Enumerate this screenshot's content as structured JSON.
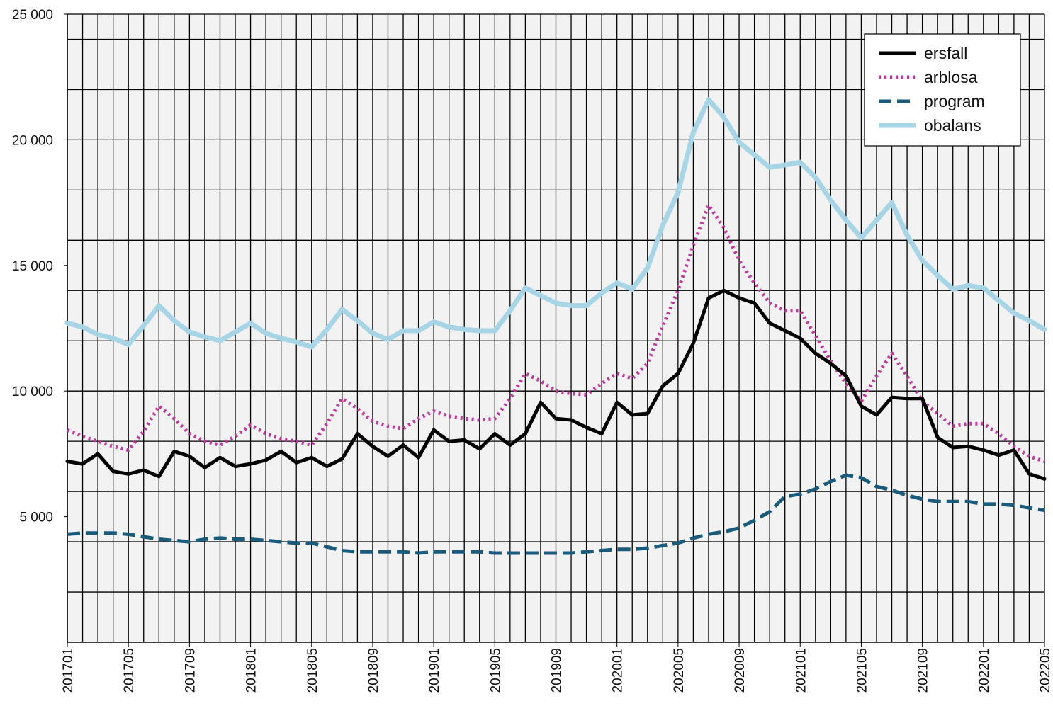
{
  "chart_data": {
    "type": "line",
    "categories": [
      "201701",
      null,
      null,
      null,
      "201705",
      null,
      null,
      null,
      "201709",
      null,
      null,
      null,
      "201801",
      null,
      null,
      null,
      "201805",
      null,
      null,
      null,
      "201809",
      null,
      null,
      null,
      "201901",
      null,
      null,
      null,
      "201905",
      null,
      null,
      null,
      "201909",
      null,
      null,
      null,
      "202001",
      null,
      null,
      null,
      "202005",
      null,
      null,
      null,
      "202009",
      null,
      null,
      null,
      "202101",
      null,
      null,
      null,
      "202105",
      null,
      null,
      null,
      "202109",
      null,
      null,
      null,
      "202201",
      null,
      null,
      null,
      "202205"
    ],
    "series": [
      {
        "name": "ersfall",
        "color": "#000000",
        "dash": "solid",
        "values": [
          7200,
          7100,
          7500,
          6800,
          6700,
          6850,
          6600,
          7600,
          7400,
          6950,
          7350,
          7000,
          7100,
          7250,
          7600,
          7150,
          7350,
          7000,
          7300,
          8300,
          7800,
          7400,
          7850,
          7350,
          8450,
          8000,
          8050,
          7700,
          8300,
          7850,
          8300,
          9550,
          8900,
          8850,
          8550,
          8300,
          9550,
          9050,
          9100,
          10200,
          10700,
          11900,
          13700,
          14000,
          13700,
          13500,
          12700,
          12400,
          12100,
          11500,
          11100,
          10600,
          9400,
          9050,
          9750,
          9700,
          9700,
          8150,
          7750,
          7800,
          7650,
          7450,
          7650,
          6700,
          6500
        ]
      },
      {
        "name": "arblosa",
        "color": "#c2379c",
        "dash": "dotted",
        "values": [
          8450,
          8200,
          8000,
          7800,
          7650,
          8400,
          9400,
          8900,
          8300,
          8000,
          7850,
          8200,
          8650,
          8300,
          8100,
          8000,
          7850,
          8700,
          9700,
          9300,
          8800,
          8600,
          8500,
          8900,
          9200,
          9000,
          8900,
          8850,
          8900,
          9700,
          10700,
          10400,
          10000,
          9900,
          9850,
          10300,
          10700,
          10500,
          11100,
          12600,
          14000,
          15800,
          17400,
          16500,
          15200,
          14300,
          13500,
          13200,
          13200,
          12200,
          11200,
          10300,
          9600,
          10600,
          11500,
          10600,
          9600,
          9100,
          8600,
          8700,
          8700,
          8300,
          7800,
          7400,
          7200
        ]
      },
      {
        "name": "program",
        "color": "#1a5a7a",
        "dash": "dashed",
        "values": [
          4300,
          4350,
          4350,
          4350,
          4300,
          4200,
          4100,
          4050,
          4000,
          4100,
          4150,
          4100,
          4100,
          4050,
          4000,
          3950,
          3950,
          3800,
          3650,
          3600,
          3600,
          3600,
          3600,
          3550,
          3600,
          3600,
          3600,
          3600,
          3550,
          3550,
          3550,
          3550,
          3550,
          3550,
          3600,
          3650,
          3700,
          3700,
          3750,
          3850,
          3950,
          4150,
          4300,
          4400,
          4550,
          4850,
          5200,
          5800,
          5900,
          6100,
          6400,
          6650,
          6550,
          6200,
          6050,
          5850,
          5700,
          5600,
          5600,
          5600,
          5500,
          5500,
          5450,
          5350,
          5250
        ]
      },
      {
        "name": "obalans",
        "color": "#a8d5e6",
        "dash": "solid",
        "values": [
          12700,
          12550,
          12250,
          12100,
          11850,
          12600,
          13400,
          12800,
          12350,
          12150,
          12000,
          12350,
          12700,
          12300,
          12100,
          11950,
          11750,
          12450,
          13250,
          12800,
          12300,
          12050,
          12400,
          12400,
          12750,
          12550,
          12450,
          12400,
          12400,
          13200,
          14100,
          13800,
          13500,
          13400,
          13400,
          13900,
          14300,
          14050,
          14900,
          16600,
          17900,
          20300,
          21600,
          20900,
          19900,
          19400,
          18900,
          19000,
          19100,
          18500,
          17600,
          16800,
          16100,
          16800,
          17500,
          16200,
          15200,
          14600,
          14050,
          14200,
          14100,
          13600,
          13100,
          12800,
          12450
        ]
      }
    ],
    "ylim": [
      0,
      25000
    ],
    "yticks": [
      {
        "value": 5000,
        "label": "5 000"
      },
      {
        "value": 10000,
        "label": "10 000"
      },
      {
        "value": 15000,
        "label": "15 000"
      },
      {
        "value": 20000,
        "label": "20 000"
      },
      {
        "value": 25000,
        "label": "25 000"
      }
    ],
    "ygrid": [
      2000,
      4000,
      6000,
      8000,
      10000,
      12000,
      14000,
      16000,
      18000,
      20000,
      22000,
      24000,
      25000
    ],
    "grid": true,
    "legend": "upper right"
  }
}
